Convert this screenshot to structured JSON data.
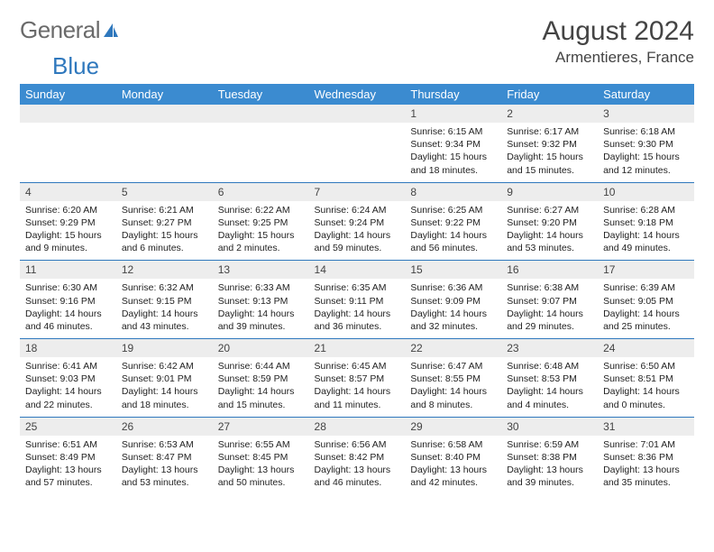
{
  "logo": {
    "text1": "General",
    "text2": "Blue"
  },
  "title": "August 2024",
  "location": "Armentieres, France",
  "colors": {
    "header_bg": "#3b8bd0",
    "header_text": "#ffffff",
    "rule": "#2f78bd",
    "daynum_bg": "#ededed",
    "logo_gray": "#6a6a6a",
    "logo_blue": "#2f78bd"
  },
  "weekdays": [
    "Sunday",
    "Monday",
    "Tuesday",
    "Wednesday",
    "Thursday",
    "Friday",
    "Saturday"
  ],
  "weeks": [
    [
      null,
      null,
      null,
      null,
      {
        "n": "1",
        "sr": "Sunrise: 6:15 AM",
        "ss": "Sunset: 9:34 PM",
        "dl1": "Daylight: 15 hours",
        "dl2": "and 18 minutes."
      },
      {
        "n": "2",
        "sr": "Sunrise: 6:17 AM",
        "ss": "Sunset: 9:32 PM",
        "dl1": "Daylight: 15 hours",
        "dl2": "and 15 minutes."
      },
      {
        "n": "3",
        "sr": "Sunrise: 6:18 AM",
        "ss": "Sunset: 9:30 PM",
        "dl1": "Daylight: 15 hours",
        "dl2": "and 12 minutes."
      }
    ],
    [
      {
        "n": "4",
        "sr": "Sunrise: 6:20 AM",
        "ss": "Sunset: 9:29 PM",
        "dl1": "Daylight: 15 hours",
        "dl2": "and 9 minutes."
      },
      {
        "n": "5",
        "sr": "Sunrise: 6:21 AM",
        "ss": "Sunset: 9:27 PM",
        "dl1": "Daylight: 15 hours",
        "dl2": "and 6 minutes."
      },
      {
        "n": "6",
        "sr": "Sunrise: 6:22 AM",
        "ss": "Sunset: 9:25 PM",
        "dl1": "Daylight: 15 hours",
        "dl2": "and 2 minutes."
      },
      {
        "n": "7",
        "sr": "Sunrise: 6:24 AM",
        "ss": "Sunset: 9:24 PM",
        "dl1": "Daylight: 14 hours",
        "dl2": "and 59 minutes."
      },
      {
        "n": "8",
        "sr": "Sunrise: 6:25 AM",
        "ss": "Sunset: 9:22 PM",
        "dl1": "Daylight: 14 hours",
        "dl2": "and 56 minutes."
      },
      {
        "n": "9",
        "sr": "Sunrise: 6:27 AM",
        "ss": "Sunset: 9:20 PM",
        "dl1": "Daylight: 14 hours",
        "dl2": "and 53 minutes."
      },
      {
        "n": "10",
        "sr": "Sunrise: 6:28 AM",
        "ss": "Sunset: 9:18 PM",
        "dl1": "Daylight: 14 hours",
        "dl2": "and 49 minutes."
      }
    ],
    [
      {
        "n": "11",
        "sr": "Sunrise: 6:30 AM",
        "ss": "Sunset: 9:16 PM",
        "dl1": "Daylight: 14 hours",
        "dl2": "and 46 minutes."
      },
      {
        "n": "12",
        "sr": "Sunrise: 6:32 AM",
        "ss": "Sunset: 9:15 PM",
        "dl1": "Daylight: 14 hours",
        "dl2": "and 43 minutes."
      },
      {
        "n": "13",
        "sr": "Sunrise: 6:33 AM",
        "ss": "Sunset: 9:13 PM",
        "dl1": "Daylight: 14 hours",
        "dl2": "and 39 minutes."
      },
      {
        "n": "14",
        "sr": "Sunrise: 6:35 AM",
        "ss": "Sunset: 9:11 PM",
        "dl1": "Daylight: 14 hours",
        "dl2": "and 36 minutes."
      },
      {
        "n": "15",
        "sr": "Sunrise: 6:36 AM",
        "ss": "Sunset: 9:09 PM",
        "dl1": "Daylight: 14 hours",
        "dl2": "and 32 minutes."
      },
      {
        "n": "16",
        "sr": "Sunrise: 6:38 AM",
        "ss": "Sunset: 9:07 PM",
        "dl1": "Daylight: 14 hours",
        "dl2": "and 29 minutes."
      },
      {
        "n": "17",
        "sr": "Sunrise: 6:39 AM",
        "ss": "Sunset: 9:05 PM",
        "dl1": "Daylight: 14 hours",
        "dl2": "and 25 minutes."
      }
    ],
    [
      {
        "n": "18",
        "sr": "Sunrise: 6:41 AM",
        "ss": "Sunset: 9:03 PM",
        "dl1": "Daylight: 14 hours",
        "dl2": "and 22 minutes."
      },
      {
        "n": "19",
        "sr": "Sunrise: 6:42 AM",
        "ss": "Sunset: 9:01 PM",
        "dl1": "Daylight: 14 hours",
        "dl2": "and 18 minutes."
      },
      {
        "n": "20",
        "sr": "Sunrise: 6:44 AM",
        "ss": "Sunset: 8:59 PM",
        "dl1": "Daylight: 14 hours",
        "dl2": "and 15 minutes."
      },
      {
        "n": "21",
        "sr": "Sunrise: 6:45 AM",
        "ss": "Sunset: 8:57 PM",
        "dl1": "Daylight: 14 hours",
        "dl2": "and 11 minutes."
      },
      {
        "n": "22",
        "sr": "Sunrise: 6:47 AM",
        "ss": "Sunset: 8:55 PM",
        "dl1": "Daylight: 14 hours",
        "dl2": "and 8 minutes."
      },
      {
        "n": "23",
        "sr": "Sunrise: 6:48 AM",
        "ss": "Sunset: 8:53 PM",
        "dl1": "Daylight: 14 hours",
        "dl2": "and 4 minutes."
      },
      {
        "n": "24",
        "sr": "Sunrise: 6:50 AM",
        "ss": "Sunset: 8:51 PM",
        "dl1": "Daylight: 14 hours",
        "dl2": "and 0 minutes."
      }
    ],
    [
      {
        "n": "25",
        "sr": "Sunrise: 6:51 AM",
        "ss": "Sunset: 8:49 PM",
        "dl1": "Daylight: 13 hours",
        "dl2": "and 57 minutes."
      },
      {
        "n": "26",
        "sr": "Sunrise: 6:53 AM",
        "ss": "Sunset: 8:47 PM",
        "dl1": "Daylight: 13 hours",
        "dl2": "and 53 minutes."
      },
      {
        "n": "27",
        "sr": "Sunrise: 6:55 AM",
        "ss": "Sunset: 8:45 PM",
        "dl1": "Daylight: 13 hours",
        "dl2": "and 50 minutes."
      },
      {
        "n": "28",
        "sr": "Sunrise: 6:56 AM",
        "ss": "Sunset: 8:42 PM",
        "dl1": "Daylight: 13 hours",
        "dl2": "and 46 minutes."
      },
      {
        "n": "29",
        "sr": "Sunrise: 6:58 AM",
        "ss": "Sunset: 8:40 PM",
        "dl1": "Daylight: 13 hours",
        "dl2": "and 42 minutes."
      },
      {
        "n": "30",
        "sr": "Sunrise: 6:59 AM",
        "ss": "Sunset: 8:38 PM",
        "dl1": "Daylight: 13 hours",
        "dl2": "and 39 minutes."
      },
      {
        "n": "31",
        "sr": "Sunrise: 7:01 AM",
        "ss": "Sunset: 8:36 PM",
        "dl1": "Daylight: 13 hours",
        "dl2": "and 35 minutes."
      }
    ]
  ]
}
